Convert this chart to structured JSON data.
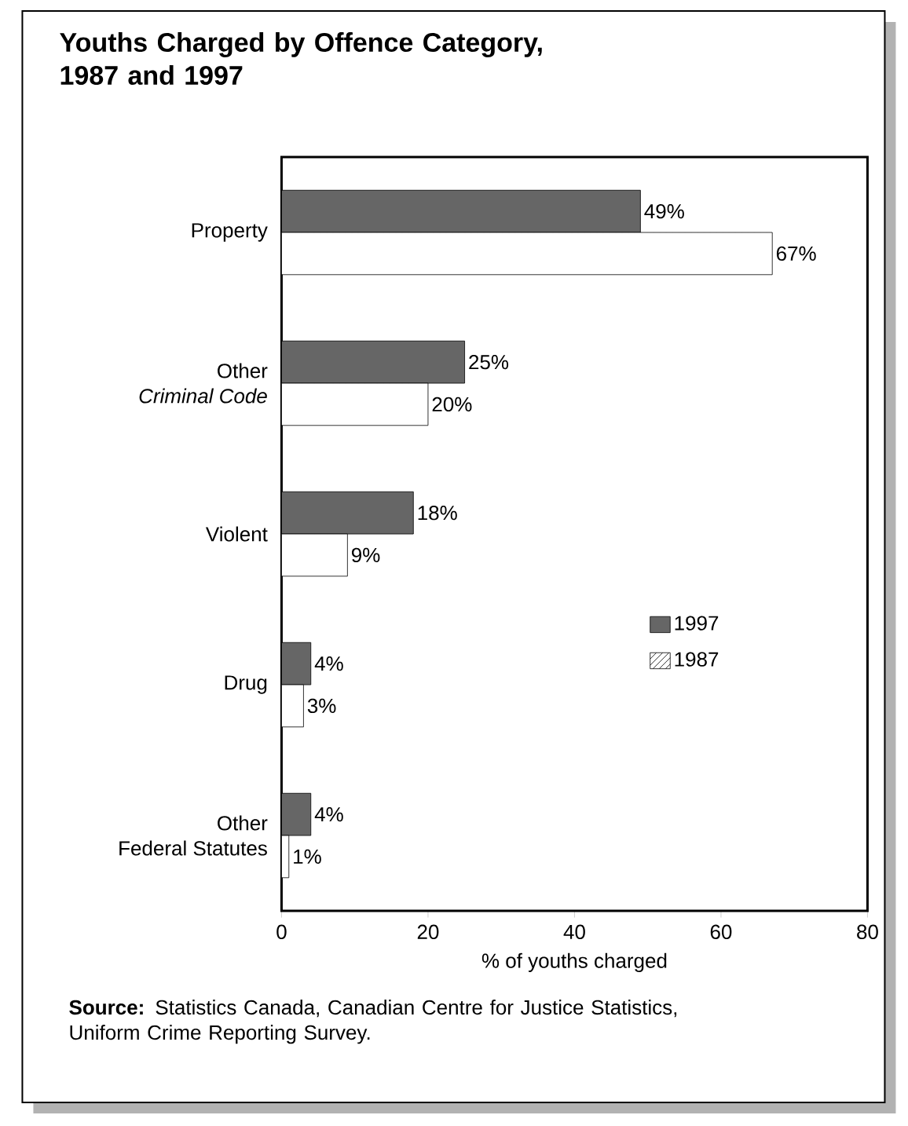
{
  "chart_data": {
    "type": "bar",
    "orientation": "horizontal",
    "title": "Youths Charged by Offence Category, 1987 and 1997",
    "categories": [
      "Property",
      "Other\n*Criminal Code*",
      "Violent",
      "Drug",
      "Other\nFederal Statutes"
    ],
    "series": [
      {
        "name": "1997",
        "color": "#666666",
        "values": [
          49,
          25,
          18,
          4,
          4
        ],
        "value_labels": [
          "49%",
          "25%",
          "18%",
          "4%",
          "4%"
        ]
      },
      {
        "name": "1987",
        "color": "#ffffff",
        "values": [
          67,
          20,
          9,
          3,
          1
        ],
        "value_labels": [
          "67%",
          "20%",
          "9%",
          "3%",
          "1%"
        ]
      }
    ],
    "xlim": [
      0,
      80
    ],
    "xticks": [
      0,
      20,
      40,
      60,
      80
    ],
    "xlabel": "% of youths charged",
    "legend": "right",
    "grid": false,
    "annotations": [
      "**Source:** Statistics Canada, Canadian Centre for Justice Statistics, Uniform Crime Reporting Survey."
    ]
  }
}
